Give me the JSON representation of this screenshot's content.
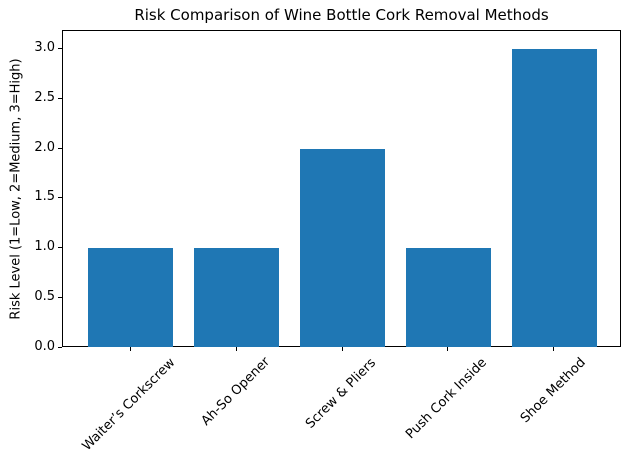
{
  "chart_data": {
    "type": "bar",
    "title": "Risk Comparison of Wine Bottle Cork Removal Methods",
    "xlabel": "",
    "ylabel": "Risk Level (1=Low, 2=Medium, 3=High)",
    "categories": [
      "Waiter’s Corkscrew",
      "Ah-So Opener",
      "Screw & Pliers",
      "Push Cork Inside",
      "Shoe Method"
    ],
    "values": [
      1,
      1,
      2,
      1,
      3
    ],
    "yticks": [
      0.0,
      0.5,
      1.0,
      1.5,
      2.0,
      2.5,
      3.0
    ],
    "ytick_labels": [
      "0.0",
      "0.5",
      "1.0",
      "1.5",
      "2.0",
      "2.5",
      "3.0"
    ],
    "ylim": [
      0,
      3.18
    ],
    "xlim": [
      -0.64,
      4.64
    ],
    "bar_width": 0.8,
    "x_tick_rotation": 45,
    "grid": false,
    "legend": null,
    "colors": {
      "bar": "#1f77b4",
      "axis": "#000000",
      "text": "#000000",
      "background": "#ffffff"
    }
  }
}
